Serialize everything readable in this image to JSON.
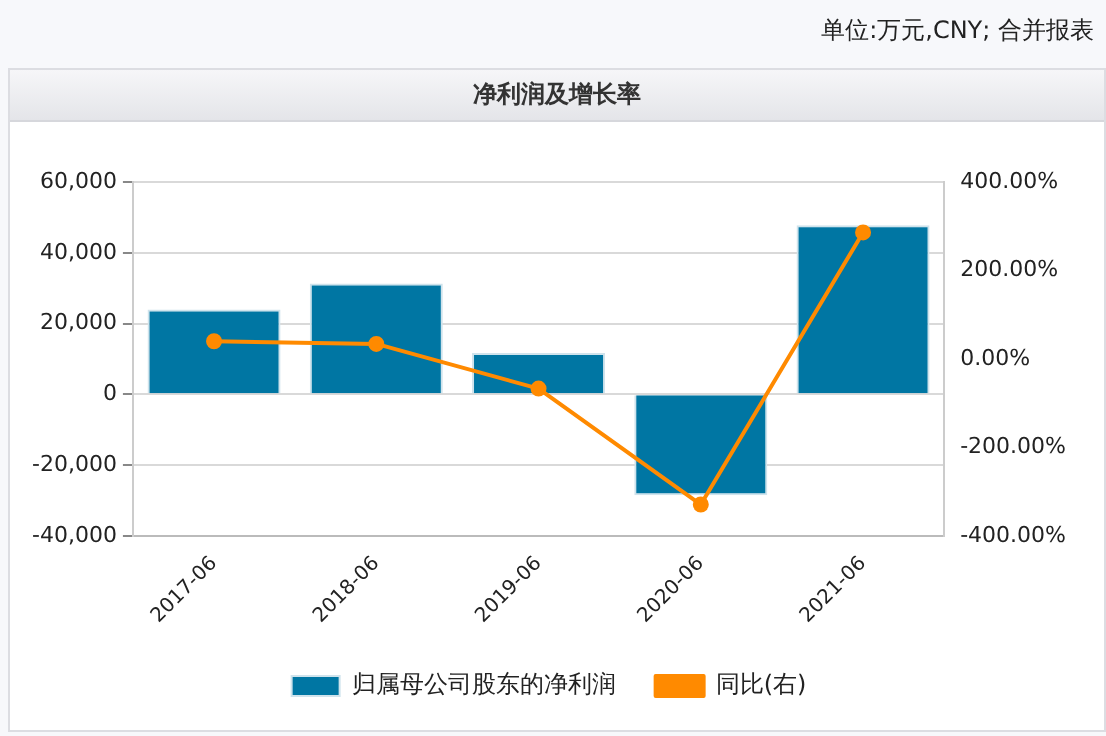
{
  "chart_data": {
    "type": "bar",
    "title": "净利润及增长率",
    "annotations": [
      "单位:万元,CNY; 合并报表"
    ],
    "categories": [
      "2017-06",
      "2018-06",
      "2019-06",
      "2020-06",
      "2021-06"
    ],
    "series": [
      {
        "name": "归属母公司股东的净利润",
        "color": "#0076a3",
        "values": [
          24000,
          31300,
          11700,
          -28500,
          47800
        ]
      },
      {
        "name": "同比(右)",
        "type": "line",
        "axis": "y2",
        "color": "#ff8a00",
        "values": [
          40,
          34,
          -67,
          -329,
          286
        ]
      }
    ],
    "ylim": [
      -40000,
      60000
    ],
    "yticks": [
      {
        "value": -40000,
        "label": "-40,000"
      },
      {
        "value": -20000,
        "label": "-20,000"
      },
      0,
      {
        "value": 20000,
        "label": "20,000"
      },
      {
        "value": 40000,
        "label": "40,000"
      },
      {
        "value": 60000,
        "label": "60,000"
      }
    ],
    "y2lim": [
      -400,
      400
    ],
    "y2ticks": [
      {
        "value": -400,
        "label": "-400.00%"
      },
      {
        "value": -200,
        "label": "-200.00%"
      },
      {
        "value": 0,
        "label": "0.00%"
      },
      {
        "value": 200,
        "label": "200.00%"
      },
      {
        "value": 400,
        "label": "400.00%"
      }
    ],
    "grid": "y",
    "legend": "bottom",
    "marker": "circle"
  }
}
